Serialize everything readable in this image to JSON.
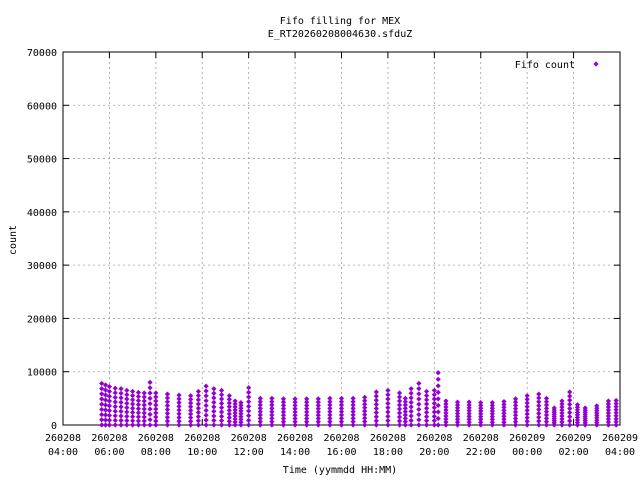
{
  "chart_data": {
    "type": "scatter",
    "title": "Fifo filling for MEX",
    "subtitle": "E_RT20260208004630.sfduZ",
    "xlabel": "Time (yymmdd HH:MM)",
    "ylabel": "count",
    "grid": true,
    "legend_position": "top-right",
    "series_color": "#9400d3",
    "xlim": [
      "260208 04:00",
      "260209 04:00"
    ],
    "ylim": [
      0,
      70000
    ],
    "y_ticks": [
      0,
      10000,
      20000,
      30000,
      40000,
      50000,
      60000,
      70000
    ],
    "y_tick_labels": [
      "0",
      "10000",
      "20000",
      "30000",
      "40000",
      "50000",
      "60000",
      "70000"
    ],
    "x_ticks": [
      {
        "time": "260208 04:00",
        "date": "260208",
        "hhmm": "04:00"
      },
      {
        "time": "260208 06:00",
        "date": "260208",
        "hhmm": "06:00"
      },
      {
        "time": "260208 08:00",
        "date": "260208",
        "hhmm": "08:00"
      },
      {
        "time": "260208 10:00",
        "date": "260208",
        "hhmm": "10:00"
      },
      {
        "time": "260208 12:00",
        "date": "260208",
        "hhmm": "12:00"
      },
      {
        "time": "260208 14:00",
        "date": "260208",
        "hhmm": "14:00"
      },
      {
        "time": "260208 16:00",
        "date": "260208",
        "hhmm": "16:00"
      },
      {
        "time": "260208 18:00",
        "date": "260208",
        "hhmm": "18:00"
      },
      {
        "time": "260208 20:00",
        "date": "260208",
        "hhmm": "20:00"
      },
      {
        "time": "260208 22:00",
        "date": "260208",
        "hhmm": "22:00"
      },
      {
        "time": "260209 00:00",
        "date": "260209",
        "hhmm": "00:00"
      },
      {
        "time": "260209 02:00",
        "date": "260209",
        "hhmm": "02:00"
      },
      {
        "time": "260209 04:00",
        "date": "260209",
        "hhmm": "04:00"
      }
    ],
    "series": [
      {
        "name": "Fifo count",
        "note": "Dense sawtooth of points from each listed top value down to 0; values approximate",
        "x": [
          "260208 05:40",
          "260208 05:50",
          "260208 06:00",
          "260208 06:15",
          "260208 06:30",
          "260208 06:45",
          "260208 07:00",
          "260208 07:15",
          "260208 07:30",
          "260208 07:45",
          "260208 08:00",
          "260208 08:30",
          "260208 09:00",
          "260208 09:30",
          "260208 09:50",
          "260208 10:10",
          "260208 10:30",
          "260208 10:50",
          "260208 11:10",
          "260208 11:25",
          "260208 11:40",
          "260208 12:00",
          "260208 12:30",
          "260208 13:00",
          "260208 13:30",
          "260208 14:00",
          "260208 14:30",
          "260208 15:00",
          "260208 15:30",
          "260208 16:00",
          "260208 16:30",
          "260208 17:00",
          "260208 17:30",
          "260208 18:00",
          "260208 18:30",
          "260208 18:45",
          "260208 19:00",
          "260208 19:20",
          "260208 19:40",
          "260208 20:00",
          "260208 20:10",
          "260208 20:30",
          "260208 21:00",
          "260208 21:30",
          "260208 22:00",
          "260208 22:30",
          "260208 23:00",
          "260208 23:30",
          "260209 00:00",
          "260209 00:30",
          "260209 00:50",
          "260209 01:10",
          "260209 01:30",
          "260209 01:50",
          "260209 02:10",
          "260209 02:30",
          "260209 03:00",
          "260209 03:30",
          "260209 03:50"
        ],
        "y": [
          7800,
          7500,
          7200,
          6900,
          6800,
          6500,
          6300,
          6100,
          6000,
          8000,
          6000,
          5800,
          5600,
          5500,
          6300,
          7300,
          6800,
          6500,
          5500,
          4500,
          4200,
          7000,
          5000,
          5000,
          4900,
          4900,
          4900,
          4900,
          5000,
          5000,
          5000,
          5200,
          6200,
          6500,
          6000,
          5000,
          6800,
          7800,
          6300,
          6500,
          9800,
          4500,
          4300,
          4300,
          4200,
          4200,
          4400,
          4900,
          5500,
          5800,
          5000,
          3200,
          4500,
          6200,
          3800,
          3200,
          3600,
          4500,
          4600
        ]
      }
    ]
  }
}
